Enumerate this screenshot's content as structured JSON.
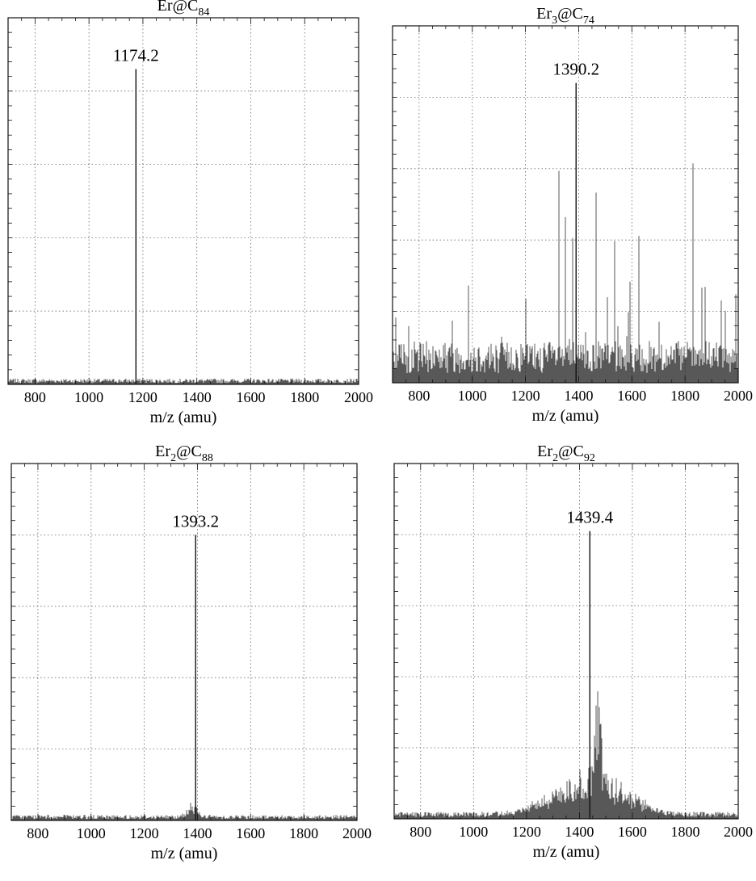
{
  "chart_data": [
    {
      "type": "line",
      "title": {
        "base": "Er@C",
        "sub1": "",
        "sub2": "84"
      },
      "xlabel": "m/z (amu)",
      "ylabel": "",
      "xlim": [
        700,
        2000
      ],
      "x_ticks": [
        800,
        1000,
        1200,
        1400,
        1600,
        1800,
        2000
      ],
      "grid": true,
      "peak": {
        "x": 1174.2,
        "y": 0.86,
        "label": "1174.2"
      },
      "noise": {
        "level": 0.012,
        "bumps": []
      },
      "series": [
        {
          "x": [
            700,
            1000,
            1174.2,
            1300,
            2000
          ],
          "y": [
            0.01,
            0.012,
            0.86,
            0.01,
            0.01
          ]
        }
      ]
    },
    {
      "type": "line",
      "title": {
        "base": "Er@C",
        "sub1": "3",
        "sub2": "74"
      },
      "xlabel": "m/z (amu)",
      "ylabel": "",
      "xlim": [
        700,
        2000
      ],
      "x_ticks": [
        800,
        1000,
        1200,
        1400,
        1600,
        1800,
        2000
      ],
      "grid": true,
      "peak": {
        "x": 1390.2,
        "y": 0.84,
        "label": "1390.2"
      },
      "noise": {
        "level": 0.09,
        "bumps": []
      },
      "series": [
        {
          "x": [
            700,
            1100,
            1390.2,
            1500,
            2000
          ],
          "y": [
            0.08,
            0.3,
            0.84,
            0.26,
            0.1
          ]
        }
      ]
    },
    {
      "type": "line",
      "title": {
        "base": "Er@C",
        "sub1": "2",
        "sub2": "88"
      },
      "xlabel": "m/z (amu)",
      "ylabel": "",
      "xlim": [
        700,
        2000
      ],
      "x_ticks": [
        800,
        1000,
        1200,
        1400,
        1600,
        1800,
        2000
      ],
      "grid": true,
      "peak": {
        "x": 1393.2,
        "y": 0.8,
        "label": "1393.2"
      },
      "noise": {
        "level": 0.012,
        "bumps": [
          {
            "x": 1380,
            "h": 0.035,
            "w": 25
          }
        ]
      },
      "series": [
        {
          "x": [
            700,
            1380,
            1393.2,
            1500,
            2000
          ],
          "y": [
            0.01,
            0.04,
            0.8,
            0.015,
            0.01
          ]
        }
      ]
    },
    {
      "type": "line",
      "title": {
        "base": "Er@C",
        "sub1": "2",
        "sub2": "92"
      },
      "xlabel": "m/z (amu)",
      "ylabel": "",
      "xlim": [
        700,
        2000
      ],
      "x_ticks": [
        800,
        1000,
        1200,
        1400,
        1600,
        1800,
        2000
      ],
      "grid": true,
      "peak": {
        "x": 1439.4,
        "y": 0.81,
        "label": "1439.4"
      },
      "noise": {
        "level": 0.015,
        "bumps": [
          {
            "x": 1440,
            "h": 0.11,
            "w": 180
          },
          {
            "x": 1470,
            "h": 0.25,
            "w": 14
          }
        ]
      },
      "series": [
        {
          "x": [
            700,
            1200,
            1439.4,
            1470,
            1600,
            2000
          ],
          "y": [
            0.02,
            0.05,
            0.81,
            0.25,
            0.06,
            0.01
          ]
        }
      ]
    }
  ]
}
